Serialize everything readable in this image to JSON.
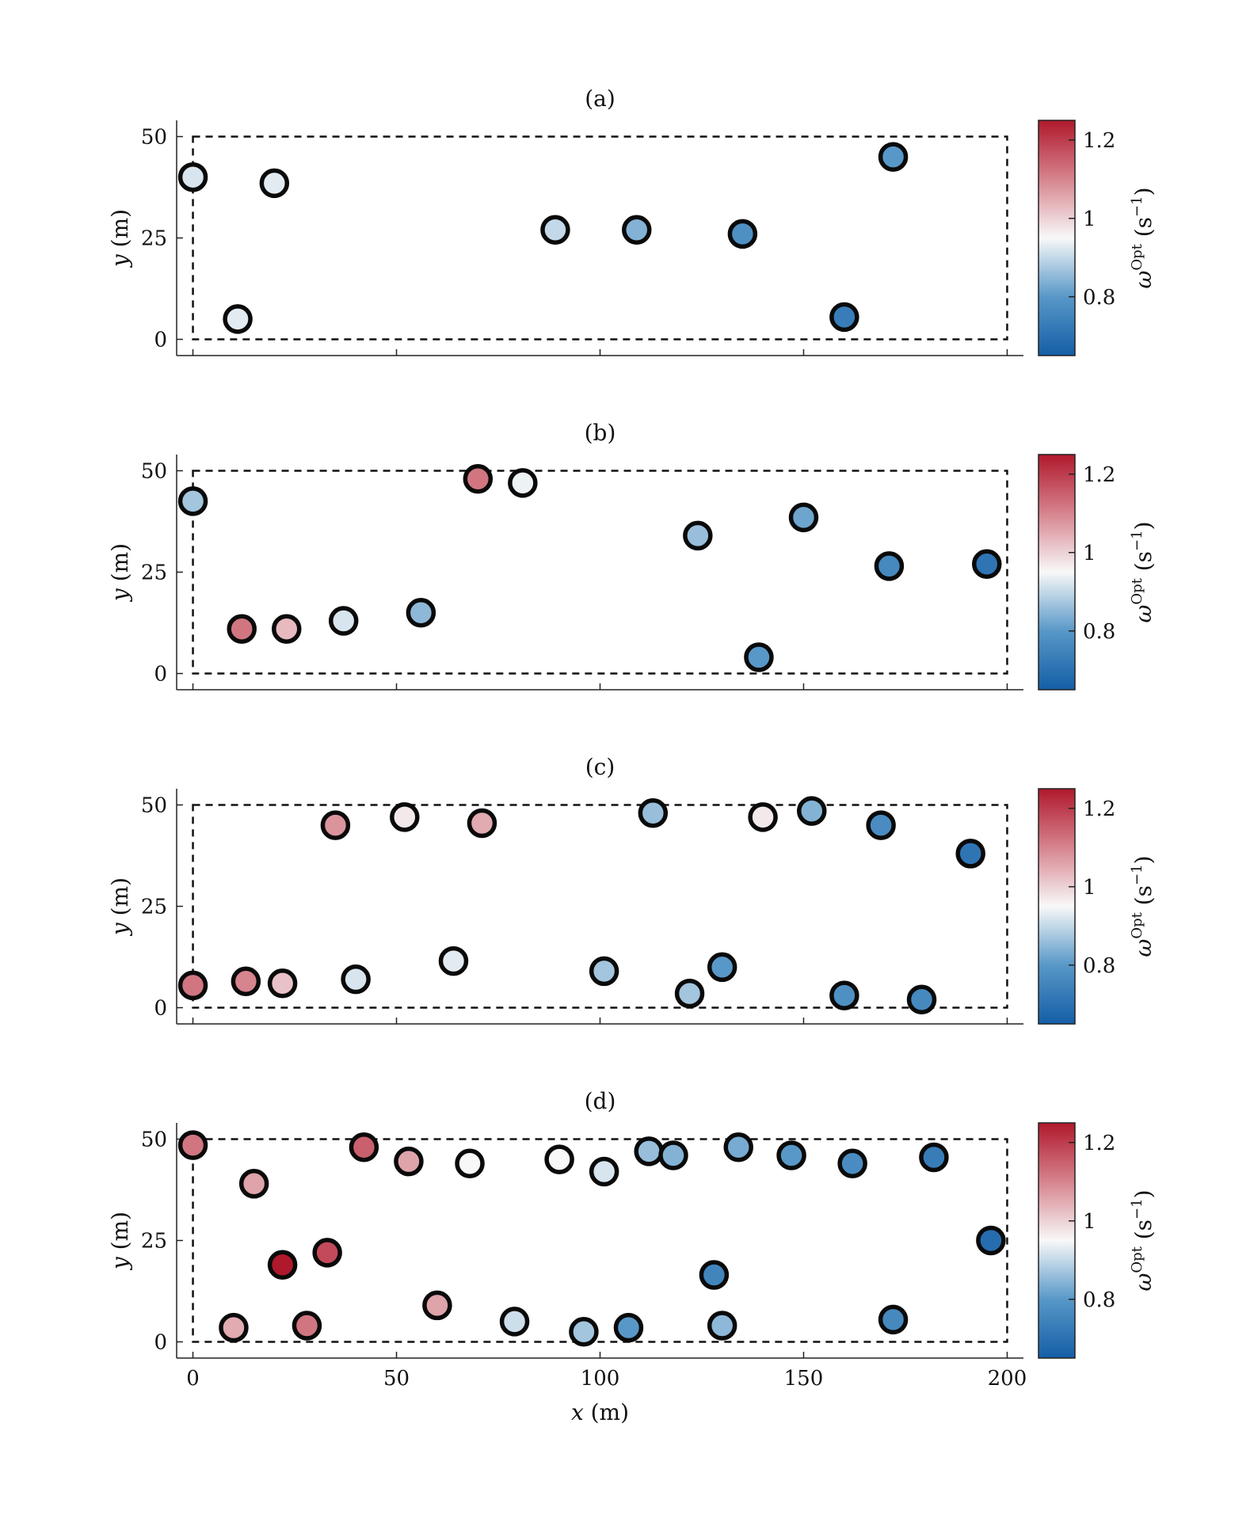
{
  "chart_data": [
    {
      "type": "scatter",
      "title": "(a)",
      "xlabel_main": "x",
      "xlabel_unit": "(m)",
      "ylabel_main": "y",
      "ylabel_unit": "(m)",
      "xlim": [
        -4,
        204
      ],
      "ylim": [
        -4,
        54
      ],
      "xticks": [
        0,
        50,
        100,
        150,
        200
      ],
      "xtick_labels": [],
      "yticks": [
        0,
        25,
        50
      ],
      "ytick_labels": [
        "0",
        "25",
        "50"
      ],
      "domain_box": {
        "x": [
          0,
          200
        ],
        "y": [
          0,
          50
        ]
      },
      "colorbar": {
        "label_main": "ω",
        "label_sup": "Opt",
        "label_unit": "(s",
        "label_unit_sup": "−1",
        "label_close": ")",
        "range": [
          0.65,
          1.25
        ],
        "ticks": [
          0.8,
          1,
          1.2
        ],
        "tick_labels": [
          "0.8",
          "1",
          "1.2"
        ],
        "colormap": "blue-white-red"
      },
      "points": [
        {
          "x": 0,
          "y": 40,
          "omega": 0.92
        },
        {
          "x": 11,
          "y": 5,
          "omega": 0.93
        },
        {
          "x": 20,
          "y": 38.5,
          "omega": 0.93
        },
        {
          "x": 89,
          "y": 27,
          "omega": 0.9
        },
        {
          "x": 109,
          "y": 27,
          "omega": 0.84
        },
        {
          "x": 135,
          "y": 26,
          "omega": 0.78
        },
        {
          "x": 160,
          "y": 5.5,
          "omega": 0.73
        },
        {
          "x": 172,
          "y": 45,
          "omega": 0.8
        }
      ]
    },
    {
      "type": "scatter",
      "title": "(b)",
      "xlabel_main": "x",
      "xlabel_unit": "(m)",
      "ylabel_main": "y",
      "ylabel_unit": "(m)",
      "xlim": [
        -4,
        204
      ],
      "ylim": [
        -4,
        54
      ],
      "xticks": [
        0,
        50,
        100,
        150,
        200
      ],
      "xtick_labels": [],
      "yticks": [
        0,
        25,
        50
      ],
      "ytick_labels": [
        "0",
        "25",
        "50"
      ],
      "domain_box": {
        "x": [
          0,
          200
        ],
        "y": [
          0,
          50
        ]
      },
      "colorbar": {
        "label_main": "ω",
        "label_sup": "Opt",
        "label_unit": "(s",
        "label_unit_sup": "−1",
        "label_close": ")",
        "range": [
          0.65,
          1.25
        ],
        "ticks": [
          0.8,
          1,
          1.2
        ],
        "tick_labels": [
          "0.8",
          "1",
          "1.2"
        ],
        "colormap": "blue-white-red"
      },
      "points": [
        {
          "x": 0,
          "y": 42.5,
          "omega": 0.87
        },
        {
          "x": 12,
          "y": 11,
          "omega": 1.12
        },
        {
          "x": 23,
          "y": 11,
          "omega": 1.03
        },
        {
          "x": 37,
          "y": 13,
          "omega": 0.92
        },
        {
          "x": 56,
          "y": 15,
          "omega": 0.85
        },
        {
          "x": 70,
          "y": 48,
          "omega": 1.12
        },
        {
          "x": 81,
          "y": 47,
          "omega": 0.94
        },
        {
          "x": 124,
          "y": 34,
          "omega": 0.86
        },
        {
          "x": 139,
          "y": 4,
          "omega": 0.8
        },
        {
          "x": 150,
          "y": 38.5,
          "omega": 0.82
        },
        {
          "x": 171,
          "y": 26.5,
          "omega": 0.76
        },
        {
          "x": 195,
          "y": 27,
          "omega": 0.71
        }
      ]
    },
    {
      "type": "scatter",
      "title": "(c)",
      "xlabel_main": "x",
      "xlabel_unit": "(m)",
      "ylabel_main": "y",
      "ylabel_unit": "(m)",
      "xlim": [
        -4,
        204
      ],
      "ylim": [
        -4,
        54
      ],
      "xticks": [
        0,
        50,
        100,
        150,
        200
      ],
      "xtick_labels": [],
      "yticks": [
        0,
        25,
        50
      ],
      "ytick_labels": [
        "0",
        "25",
        "50"
      ],
      "domain_box": {
        "x": [
          0,
          200
        ],
        "y": [
          0,
          50
        ]
      },
      "colorbar": {
        "label_main": "ω",
        "label_sup": "Opt",
        "label_unit": "(s",
        "label_unit_sup": "−1",
        "label_close": ")",
        "range": [
          0.65,
          1.25
        ],
        "ticks": [
          0.8,
          1,
          1.2
        ],
        "tick_labels": [
          "0.8",
          "1",
          "1.2"
        ],
        "colormap": "blue-white-red"
      },
      "points": [
        {
          "x": 0,
          "y": 5.5,
          "omega": 1.12
        },
        {
          "x": 13,
          "y": 6.5,
          "omega": 1.1
        },
        {
          "x": 22,
          "y": 6,
          "omega": 1.02
        },
        {
          "x": 40,
          "y": 7,
          "omega": 0.92
        },
        {
          "x": 35,
          "y": 45,
          "omega": 1.08
        },
        {
          "x": 52,
          "y": 47,
          "omega": 0.97
        },
        {
          "x": 71,
          "y": 45.5,
          "omega": 1.05
        },
        {
          "x": 64,
          "y": 11.5,
          "omega": 0.93
        },
        {
          "x": 101,
          "y": 9,
          "omega": 0.87
        },
        {
          "x": 113,
          "y": 48,
          "omega": 0.86
        },
        {
          "x": 122,
          "y": 3.5,
          "omega": 0.87
        },
        {
          "x": 130,
          "y": 10,
          "omega": 0.8
        },
        {
          "x": 140,
          "y": 47,
          "omega": 0.97
        },
        {
          "x": 152,
          "y": 48.5,
          "omega": 0.84
        },
        {
          "x": 160,
          "y": 3,
          "omega": 0.78
        },
        {
          "x": 169,
          "y": 45,
          "omega": 0.77
        },
        {
          "x": 179,
          "y": 2,
          "omega": 0.76
        },
        {
          "x": 191,
          "y": 38,
          "omega": 0.71
        }
      ]
    },
    {
      "type": "scatter",
      "title": "(d)",
      "xlabel_main": "x",
      "xlabel_unit": "(m)",
      "ylabel_main": "y",
      "ylabel_unit": "(m)",
      "xlim": [
        -4,
        204
      ],
      "ylim": [
        -4,
        54
      ],
      "xticks": [
        0,
        50,
        100,
        150,
        200
      ],
      "xtick_labels": [
        "0",
        "50",
        "100",
        "150",
        "200"
      ],
      "yticks": [
        0,
        25,
        50
      ],
      "ytick_labels": [
        "0",
        "25",
        "50"
      ],
      "domain_box": {
        "x": [
          0,
          200
        ],
        "y": [
          0,
          50
        ]
      },
      "colorbar": {
        "label_main": "ω",
        "label_sup": "Opt",
        "label_unit": "(s",
        "label_unit_sup": "−1",
        "label_close": ")",
        "range": [
          0.65,
          1.25
        ],
        "ticks": [
          0.8,
          1,
          1.2
        ],
        "tick_labels": [
          "0.8",
          "1",
          "1.2"
        ],
        "colormap": "blue-white-red"
      },
      "points": [
        {
          "x": 0,
          "y": 48.5,
          "omega": 1.12
        },
        {
          "x": 15,
          "y": 39,
          "omega": 1.06
        },
        {
          "x": 22,
          "y": 19,
          "omega": 1.25
        },
        {
          "x": 33,
          "y": 22,
          "omega": 1.18
        },
        {
          "x": 42,
          "y": 48,
          "omega": 1.15
        },
        {
          "x": 10,
          "y": 3.5,
          "omega": 1.05
        },
        {
          "x": 28,
          "y": 4,
          "omega": 1.12
        },
        {
          "x": 53,
          "y": 44.5,
          "omega": 1.06
        },
        {
          "x": 60,
          "y": 9,
          "omega": 1.06
        },
        {
          "x": 68,
          "y": 44,
          "omega": 0.95
        },
        {
          "x": 79,
          "y": 5,
          "omega": 0.91
        },
        {
          "x": 90,
          "y": 45,
          "omega": 0.95
        },
        {
          "x": 96,
          "y": 2.5,
          "omega": 0.87
        },
        {
          "x": 101,
          "y": 42,
          "omega": 0.92
        },
        {
          "x": 107,
          "y": 3.5,
          "omega": 0.8
        },
        {
          "x": 112,
          "y": 47,
          "omega": 0.86
        },
        {
          "x": 118,
          "y": 46,
          "omega": 0.84
        },
        {
          "x": 128,
          "y": 16.5,
          "omega": 0.75
        },
        {
          "x": 130,
          "y": 4,
          "omega": 0.85
        },
        {
          "x": 134,
          "y": 48,
          "omega": 0.83
        },
        {
          "x": 147,
          "y": 46,
          "omega": 0.8
        },
        {
          "x": 162,
          "y": 44,
          "omega": 0.77
        },
        {
          "x": 172,
          "y": 5.5,
          "omega": 0.76
        },
        {
          "x": 182,
          "y": 45.5,
          "omega": 0.73
        },
        {
          "x": 196,
          "y": 25,
          "omega": 0.69
        }
      ]
    }
  ]
}
